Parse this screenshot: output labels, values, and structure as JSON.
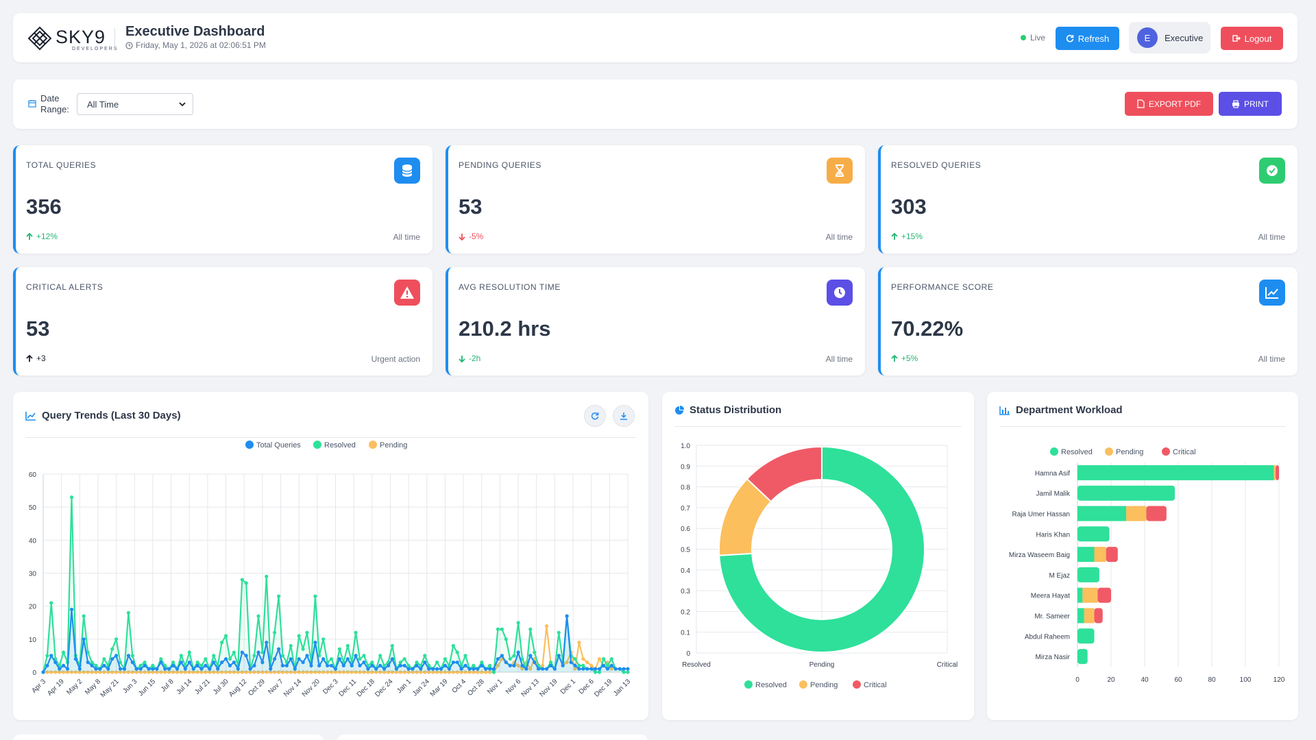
{
  "header": {
    "brand": "SKY9",
    "brand_sub": "DEVELOPERS",
    "title": "Executive Dashboard",
    "datetime": "Friday, May 1, 2026 at 02:06:51 PM",
    "live_label": "Live",
    "refresh_label": "Refresh",
    "user_initial": "E",
    "user_label": "Executive",
    "logout_label": "Logout"
  },
  "filter": {
    "label_line1": "Date",
    "label_line2": "Range:",
    "selected": "All Time",
    "export_label": "EXPORT PDF",
    "print_label": "PRINT"
  },
  "kpis": [
    {
      "label": "TOTAL QUERIES",
      "value": "356",
      "trend": "+12%",
      "trend_dir": "up",
      "trend_color": "#22b573",
      "note": "All time",
      "icon": "database-icon",
      "icon_bg": "#1e8df0"
    },
    {
      "label": "PENDING QUERIES",
      "value": "53",
      "trend": "-5%",
      "trend_dir": "down",
      "trend_color": "#ef4f5c",
      "note": "All time",
      "icon": "hourglass-icon",
      "icon_bg": "#f7ad47"
    },
    {
      "label": "RESOLVED QUERIES",
      "value": "303",
      "trend": "+15%",
      "trend_dir": "up",
      "trend_color": "#22b573",
      "note": "All time",
      "icon": "check-circle-icon",
      "icon_bg": "#2ecc71"
    },
    {
      "label": "CRITICAL ALERTS",
      "value": "53",
      "trend": "+3",
      "trend_dir": "up",
      "trend_color": "#1a202c",
      "note": "Urgent action",
      "icon": "warning-icon",
      "icon_bg": "#ef4f5c"
    },
    {
      "label": "AVG RESOLUTION TIME",
      "value": "210.2 hrs",
      "trend": "-2h",
      "trend_dir": "down",
      "trend_color": "#22b573",
      "note": "All time",
      "icon": "clock-icon",
      "icon_bg": "#5b4fe6"
    },
    {
      "label": "PERFORMANCE SCORE",
      "value": "70.22%",
      "trend": "+5%",
      "trend_dir": "up",
      "trend_color": "#22b573",
      "note": "All time",
      "icon": "trend-chart-icon",
      "icon_bg": "#1e8df0"
    }
  ],
  "colors": {
    "total": "#1e8df0",
    "resolved": "#2ee09a",
    "pending": "#fbbf5e",
    "critical": "#f05a66"
  },
  "cards": {
    "trend_title": "Query Trends (Last 30 Days)",
    "status_title": "Status Distribution",
    "dept_title": "Department Workload"
  },
  "chart_data": [
    {
      "type": "line",
      "title": "Query Trends (Last 30 Days)",
      "series_names": [
        "Total Queries",
        "Resolved",
        "Pending"
      ],
      "ylim": [
        0,
        60
      ],
      "yticks": [
        0,
        10,
        20,
        30,
        40,
        50,
        60
      ],
      "x_tick_labels": [
        "Apr 3",
        "Apr 19",
        "May 2",
        "May 8",
        "May 21",
        "Jun 3",
        "Jun 15",
        "Jul 8",
        "Jul 14",
        "Jul 21",
        "Jul 30",
        "Aug 12",
        "Oct 29",
        "Nov 7",
        "Nov 14",
        "Nov 20",
        "Dec 3",
        "Dec 11",
        "Dec 18",
        "Dec 24",
        "Jan 1",
        "Jan 24",
        "Mar 19",
        "Oct 4",
        "Oct 28",
        "Nov 1",
        "Nov 6",
        "Nov 13",
        "Nov 19",
        "Dec 1",
        "Dec 6",
        "Dec 19",
        "Jan 13"
      ],
      "resolved": [
        0,
        5,
        21,
        4,
        2,
        6,
        3,
        53,
        5,
        2,
        17,
        6,
        3,
        2,
        1,
        4,
        2,
        7,
        10,
        3,
        1,
        18,
        5,
        1,
        2,
        3,
        1,
        2,
        1,
        4,
        2,
        1,
        3,
        1,
        5,
        2,
        6,
        1,
        3,
        2,
        4,
        1,
        5,
        2,
        9,
        11,
        4,
        6,
        2,
        28,
        27,
        1,
        5,
        17,
        6,
        29,
        2,
        12,
        23,
        5,
        3,
        8,
        1,
        11,
        7,
        12,
        3,
        23,
        5,
        10,
        3,
        4,
        1,
        7,
        3,
        8,
        3,
        12,
        4,
        5,
        2,
        3,
        1,
        5,
        2,
        3,
        8,
        1,
        3,
        4,
        2,
        1,
        3,
        2,
        5,
        2,
        1,
        3,
        1,
        4,
        2,
        8,
        6,
        2,
        5,
        1,
        2,
        1,
        3,
        1,
        2,
        0,
        13,
        13,
        10,
        4,
        5,
        15,
        4,
        1,
        13,
        6,
        2,
        1,
        1,
        3,
        1,
        12,
        3,
        17,
        5,
        4,
        2,
        2,
        1,
        1,
        0,
        0,
        4,
        2,
        4,
        1,
        1,
        0,
        0
      ],
      "total": [
        0,
        2,
        5,
        3,
        1,
        2,
        1,
        19,
        4,
        1,
        10,
        3,
        2,
        1,
        1,
        2,
        1,
        4,
        5,
        1,
        1,
        5,
        3,
        1,
        1,
        2,
        1,
        1,
        1,
        3,
        1,
        1,
        2,
        1,
        3,
        1,
        3,
        1,
        2,
        1,
        2,
        1,
        3,
        1,
        3,
        4,
        2,
        3,
        1,
        6,
        5,
        1,
        2,
        6,
        3,
        9,
        1,
        4,
        7,
        2,
        2,
        4,
        1,
        4,
        3,
        5,
        2,
        9,
        2,
        4,
        2,
        2,
        1,
        4,
        2,
        4,
        2,
        5,
        2,
        3,
        1,
        2,
        1,
        2,
        1,
        2,
        4,
        1,
        2,
        2,
        1,
        1,
        2,
        1,
        3,
        1,
        1,
        1,
        1,
        2,
        1,
        3,
        3,
        1,
        2,
        1,
        1,
        1,
        2,
        1,
        1,
        1,
        4,
        5,
        3,
        2,
        2,
        6,
        2,
        1,
        5,
        3,
        1,
        1,
        1,
        2,
        1,
        5,
        2,
        17,
        3,
        2,
        1,
        1,
        1,
        1,
        1,
        1,
        2,
        1,
        2,
        1,
        1,
        1,
        1
      ],
      "pending": [
        0,
        0,
        0,
        0,
        0,
        0,
        0,
        0,
        0,
        0,
        0,
        0,
        0,
        0,
        0,
        0,
        0,
        0,
        0,
        0,
        0,
        0,
        0,
        0,
        0,
        0,
        0,
        0,
        0,
        0,
        0,
        0,
        0,
        0,
        0,
        0,
        0,
        0,
        0,
        0,
        0,
        0,
        0,
        0,
        0,
        0,
        0,
        0,
        0,
        0,
        0,
        0,
        0,
        0,
        0,
        0,
        0,
        0,
        0,
        0,
        0,
        0,
        0,
        0,
        0,
        0,
        0,
        0,
        0,
        0,
        0,
        0,
        0,
        0,
        0,
        0,
        0,
        0,
        0,
        0,
        0,
        0,
        0,
        0,
        0,
        0,
        0,
        0,
        0,
        0,
        0,
        0,
        0,
        0,
        0,
        0,
        0,
        0,
        0,
        0,
        0,
        0,
        0,
        0,
        0,
        0,
        0,
        0,
        0,
        0,
        0,
        0,
        2,
        4,
        3,
        2,
        3,
        2,
        1,
        3,
        1,
        4,
        1,
        2,
        14,
        3,
        1,
        5,
        2,
        3,
        6,
        1,
        9,
        4,
        3,
        2,
        1,
        4,
        2,
        3,
        1
      ]
    },
    {
      "type": "pie",
      "subtype": "doughnut",
      "title": "Status Distribution",
      "categories": [
        "Resolved",
        "Pending",
        "Critical"
      ],
      "values": [
        303,
        53,
        53
      ],
      "y_tick_labels": [
        "0",
        "0.1",
        "0.2",
        "0.3",
        "0.4",
        "0.5",
        "0.6",
        "0.7",
        "0.8",
        "0.9",
        "1.0"
      ]
    },
    {
      "type": "bar",
      "orientation": "horizontal",
      "stacked": true,
      "title": "Department Workload",
      "categories": [
        "Hamna Asif",
        "Jamil Malik",
        "Raja Umer Hassan",
        "Haris Khan",
        "Mirza Waseem Baig",
        "M Ejaz",
        "Meera Hayat",
        "Mr. Sameer",
        "Abdul Raheem",
        "Mirza Nasir"
      ],
      "series": [
        {
          "name": "Resolved",
          "values": [
            117,
            58,
            29,
            19,
            10,
            13,
            3,
            4,
            10,
            6
          ]
        },
        {
          "name": "Pending",
          "values": [
            1,
            0,
            12,
            0,
            7,
            0,
            9,
            6,
            0,
            0
          ]
        },
        {
          "name": "Critical",
          "values": [
            2,
            0,
            12,
            0,
            7,
            0,
            8,
            5,
            0,
            0
          ]
        }
      ],
      "xlim": [
        0,
        120
      ],
      "xticks": [
        0,
        20,
        40,
        60,
        80,
        100,
        120
      ]
    }
  ]
}
